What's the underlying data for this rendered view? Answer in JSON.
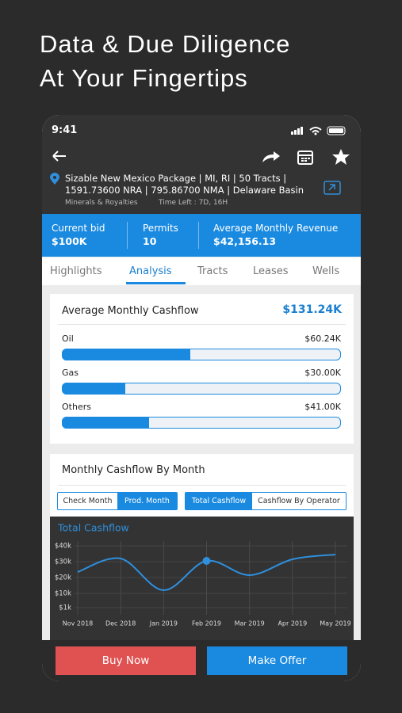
{
  "header": {
    "title_line1": "Data & Due Diligence",
    "title_line2": "At Your Fingertips"
  },
  "status_bar": {
    "time": "9:41"
  },
  "listing": {
    "title_line1": "Sizable New Mexico Package | MI, RI | 50 Tracts |",
    "title_line2": "1591.73600 NRA | 795.86700 NMA | Delaware Basin",
    "category": "Minerals & Royalties",
    "time_left": "Time Left : 7D, 16H"
  },
  "stats": [
    {
      "label": "Current bid",
      "value": "$100K"
    },
    {
      "label": "Permits",
      "value": "10"
    },
    {
      "label": "Average Monthly Revenue",
      "value": "$42,156.13"
    }
  ],
  "tabs": [
    "Highlights",
    "Analysis",
    "Tracts",
    "Leases",
    "Wells"
  ],
  "active_tab": 1,
  "cashflow": {
    "title": "Average Monthly Cashflow",
    "total": 131.24,
    "total_label": "$131.24K",
    "items": [
      {
        "name": "Oil",
        "value": 60.24,
        "value_label": "$60.24K"
      },
      {
        "name": "Gas",
        "value": 30.0,
        "value_label": "$30.00K"
      },
      {
        "name": "Others",
        "value": 41.0,
        "value_label": "$41.00K"
      }
    ]
  },
  "monthly": {
    "title": "Monthly Cashflow By Month",
    "toggle_month": [
      "Check Month",
      "Prod. Month"
    ],
    "toggle_view": [
      "Total Cashflow",
      "Cashflow By Operator"
    ]
  },
  "chart_data": {
    "type": "line",
    "title": "Total Cashflow",
    "categories": [
      "Nov 2018",
      "Dec 2018",
      "Jan 2019",
      "Feb 2019",
      "Mar 2019",
      "Apr 2019",
      "May 2019"
    ],
    "series": [
      {
        "color": "#2f8fdc",
        "values": [
          23500,
          32000,
          12000,
          30500,
          21500,
          31500,
          34500
        ]
      }
    ],
    "highlight_index": 3,
    "ylim": [
      0,
      40000
    ],
    "yticks": [
      {
        "value": 40000,
        "label": "$40k"
      },
      {
        "value": 30000,
        "label": "$30k"
      },
      {
        "value": 20000,
        "label": "$20k"
      },
      {
        "value": 10000,
        "label": "$10k"
      },
      {
        "value": 1000,
        "label": "$1k"
      }
    ],
    "grid": true
  },
  "actions": {
    "buy": "Buy Now",
    "offer": "Make Offer"
  }
}
